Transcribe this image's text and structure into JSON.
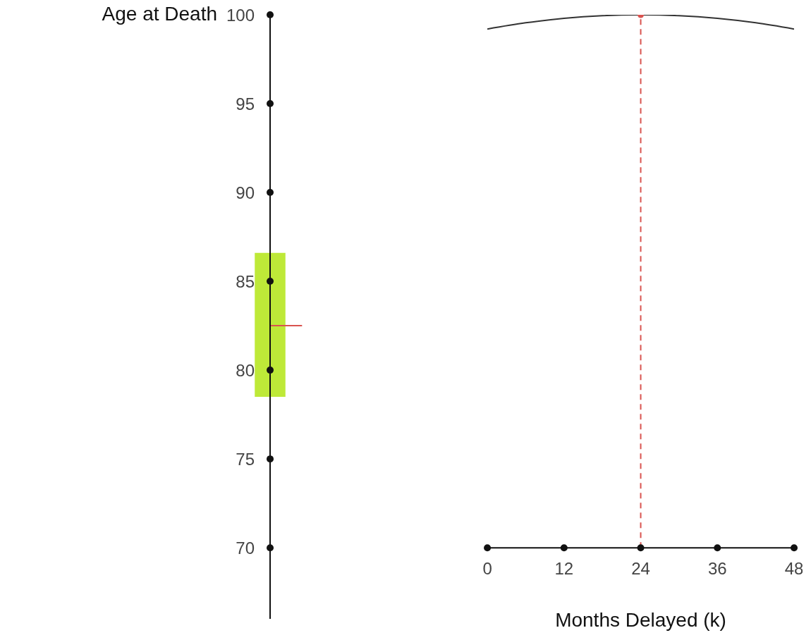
{
  "chart_data": {
    "type": "line",
    "xlabel": "Months Delayed (k)",
    "ylabel": "Age at Death",
    "x": [
      0,
      6,
      12,
      18,
      24,
      30,
      36,
      42,
      48
    ],
    "series": [
      {
        "color": "#333333",
        "marker": "none",
        "values": [
          99.2,
          99.55,
          99.8,
          99.95,
          100,
          99.95,
          99.8,
          99.55,
          99.2
        ]
      },
      {
        "type": "scatter",
        "color": "#d9534f",
        "marker": "circle",
        "x": [
          24
        ],
        "values": [
          100
        ]
      },
      {
        "type": "bar",
        "color": "#b5e61d",
        "x": [
          -34
        ],
        "base": [
          78.5
        ],
        "values": [
          8.1
        ]
      },
      {
        "type": "line",
        "color": "#d9534f",
        "marker": "none",
        "x": [
          -34,
          -29
        ],
        "values": [
          82.5,
          82.5
        ]
      }
    ],
    "xlim": [
      -34,
      48
    ],
    "xticks": [
      0,
      12,
      24,
      36,
      48
    ],
    "ylim": [
      66,
      100
    ],
    "yticks": [
      70,
      75,
      80,
      85,
      90,
      95,
      100
    ],
    "ref_lines": [
      {
        "axis": "x",
        "value": 24,
        "color": "#d9534f",
        "line_style": "dashed"
      }
    ]
  }
}
